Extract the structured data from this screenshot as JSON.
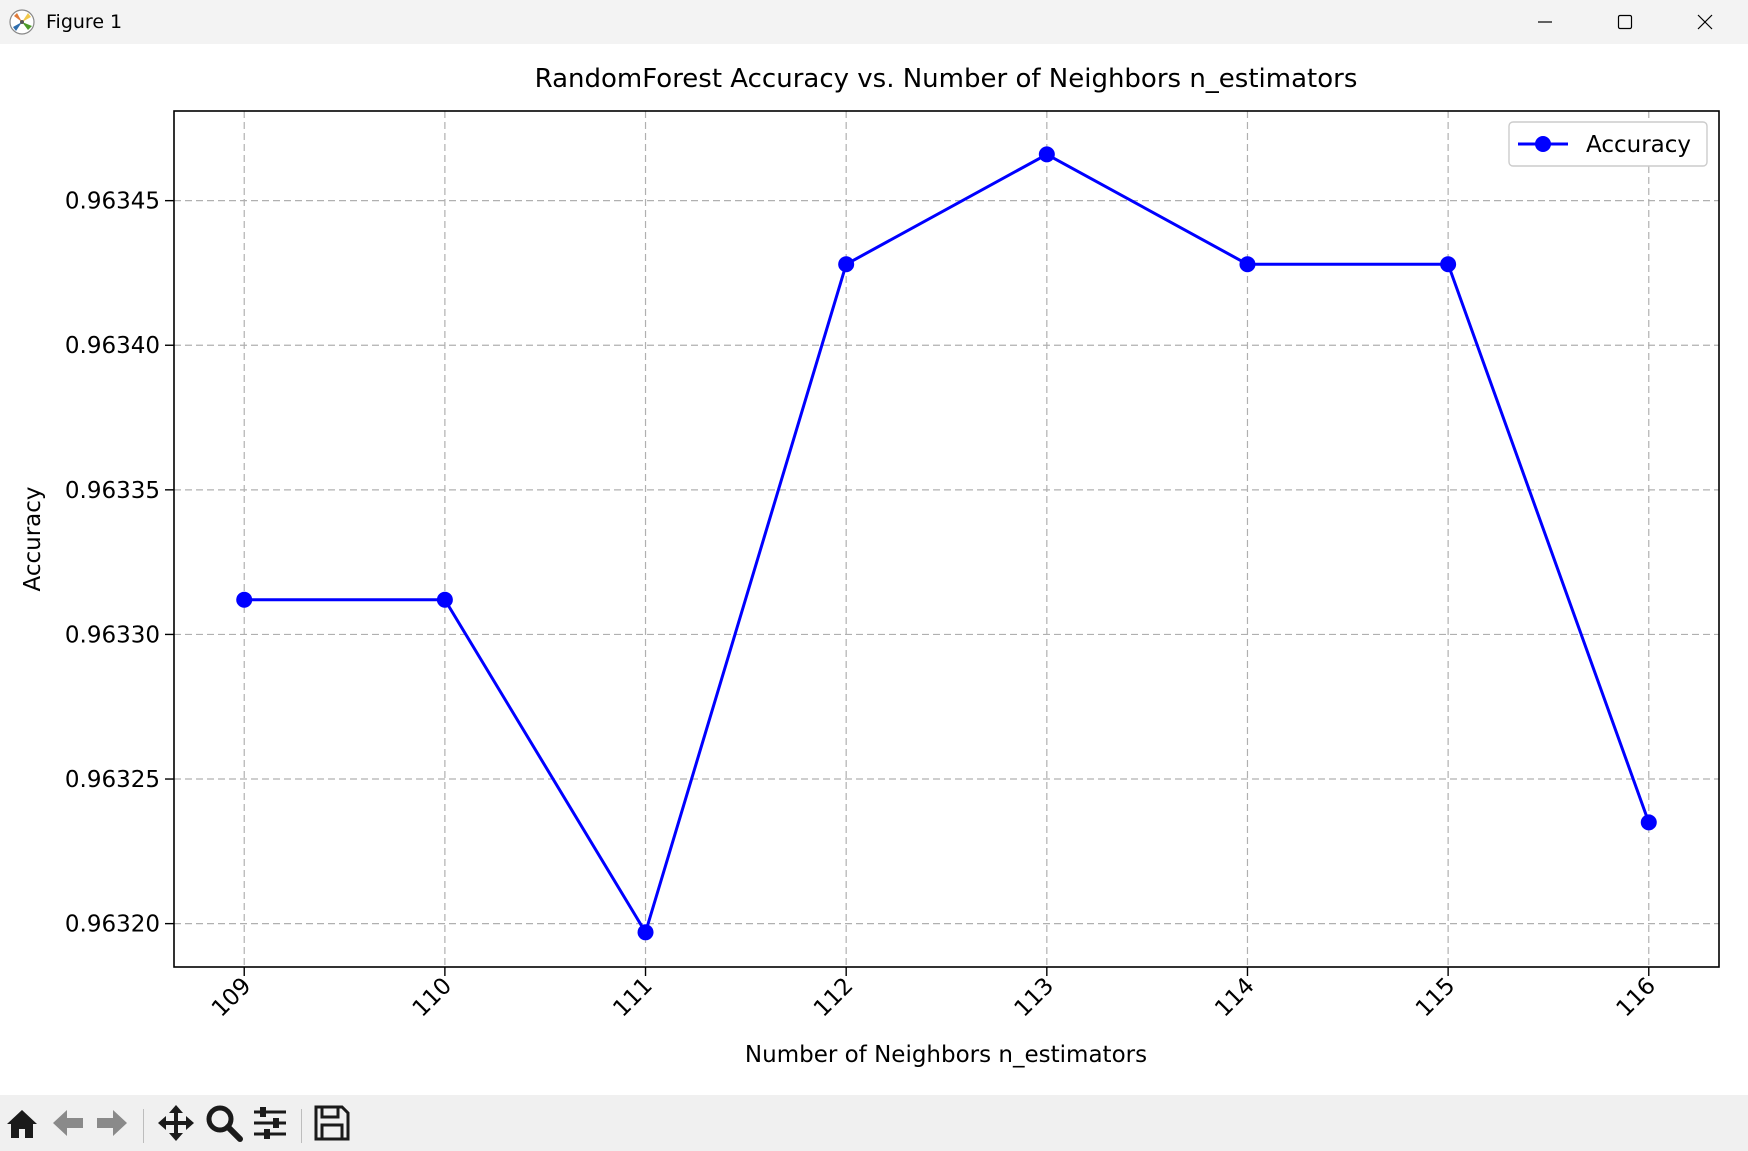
{
  "window": {
    "title": "Figure 1"
  },
  "toolbar": {
    "tools": [
      "home-icon",
      "back-icon",
      "forward-icon",
      "pan-icon",
      "zoom-icon",
      "configure-subplots-icon",
      "save-icon"
    ]
  },
  "colors": {
    "series": "#0000ff",
    "grid": "#b0b0b0",
    "toolbar_bg": "#f0f0f0",
    "titlebar_bg": "#f3f3f3"
  },
  "chart_data": {
    "type": "line",
    "title": "RandomForest Accuracy vs. Number of Neighbors n_estimators",
    "xlabel": "Number of Neighbors n_estimators",
    "ylabel": "Accuracy",
    "x": [
      109,
      110,
      111,
      112,
      113,
      114,
      115,
      116
    ],
    "series": [
      {
        "name": "Accuracy",
        "values": [
          0.963312,
          0.963312,
          0.963197,
          0.963428,
          0.963466,
          0.963428,
          0.963428,
          0.963235
        ],
        "color": "#0000ff",
        "marker": "circle"
      }
    ],
    "xticks": [
      "109",
      "110",
      "111",
      "112",
      "113",
      "114",
      "115",
      "116"
    ],
    "yticks": [
      "0.96320",
      "0.96325",
      "0.96330",
      "0.96335",
      "0.96340",
      "0.96345"
    ],
    "ytick_values": [
      0.9632,
      0.96325,
      0.9633,
      0.96335,
      0.9634,
      0.96345
    ],
    "xlim": [
      108.65,
      116.35
    ],
    "ylim": [
      0.963185,
      0.963481
    ],
    "grid": true,
    "grid_style": "dashed",
    "legend_position": "top-right",
    "xtick_rotation": "45"
  }
}
